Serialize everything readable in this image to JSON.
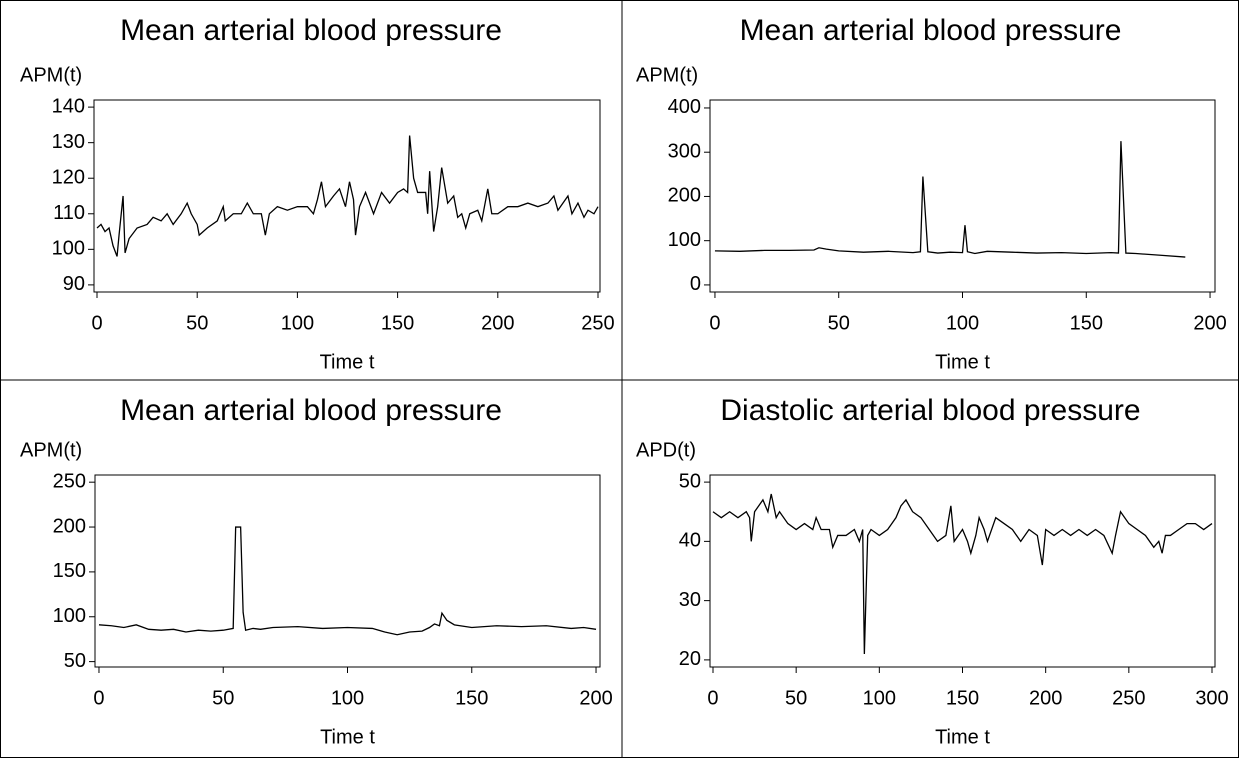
{
  "chart_data": [
    {
      "type": "line",
      "title": "Mean arterial blood pressure",
      "y_label": "APM(t)",
      "x_label": "Time t",
      "color": "#000000",
      "xlim": [
        -1.5,
        251
      ],
      "ylim": [
        88,
        142
      ],
      "xticks": [
        0,
        50,
        100,
        150,
        200,
        250
      ],
      "yticks": [
        90,
        100,
        110,
        120,
        130,
        140
      ],
      "x": [
        0,
        2,
        4,
        6,
        8,
        10,
        11,
        13,
        14,
        16,
        20,
        25,
        28,
        32,
        35,
        38,
        42,
        45,
        47,
        50,
        51,
        55,
        60,
        63,
        64,
        68,
        72,
        75,
        78,
        82,
        84,
        86,
        90,
        95,
        100,
        105,
        108,
        110,
        112,
        114,
        118,
        121,
        124,
        126,
        128,
        129,
        131,
        134,
        138,
        142,
        146,
        150,
        153,
        155,
        156,
        158,
        160,
        164,
        165,
        166,
        168,
        170,
        172,
        175,
        178,
        180,
        182,
        184,
        186,
        190,
        192,
        195,
        197,
        200,
        205,
        210,
        215,
        220,
        225,
        228,
        230,
        235,
        237,
        240,
        243,
        245,
        248,
        250
      ],
      "values": [
        106,
        107,
        105,
        106,
        101,
        98,
        104,
        115,
        99,
        103,
        106,
        107,
        109,
        108,
        110,
        107,
        110,
        113,
        110,
        107,
        104,
        106,
        108,
        112,
        108,
        110,
        110,
        113,
        110,
        110,
        104,
        110,
        112,
        111,
        112,
        112,
        110,
        114,
        119,
        112,
        115,
        117,
        112,
        119,
        114,
        104,
        112,
        116,
        110,
        116,
        113,
        116,
        117,
        116,
        132,
        120,
        116,
        116,
        110,
        122,
        105,
        112,
        123,
        113,
        115,
        109,
        110,
        106,
        110,
        111,
        108,
        117,
        110,
        110,
        112,
        112,
        113,
        112,
        113,
        115,
        111,
        115,
        110,
        113,
        109,
        111,
        110,
        112
      ]
    },
    {
      "type": "line",
      "title": "Mean arterial blood pressure",
      "y_label": "APM(t)",
      "x_label": "Time t",
      "color": "#000000",
      "xlim": [
        -2,
        202
      ],
      "ylim": [
        -16,
        418
      ],
      "xticks": [
        0,
        50,
        100,
        150,
        200
      ],
      "yticks": [
        0,
        100,
        200,
        300,
        400
      ],
      "x": [
        0,
        10,
        20,
        30,
        40,
        42,
        45,
        50,
        60,
        70,
        80,
        83,
        84,
        86,
        90,
        95,
        100,
        101,
        102,
        105,
        110,
        120,
        130,
        140,
        150,
        160,
        163,
        164,
        166,
        170,
        180,
        190
      ],
      "values": [
        77,
        76,
        78,
        78,
        79,
        84,
        81,
        77,
        74,
        76,
        73,
        75,
        245,
        75,
        72,
        74,
        73,
        135,
        75,
        71,
        76,
        74,
        72,
        73,
        71,
        73,
        72,
        325,
        72,
        71,
        67,
        63
      ]
    },
    {
      "type": "line",
      "title": "Mean arterial blood pressure",
      "y_label": "APM(t)",
      "x_label": "Time t",
      "color": "#000000",
      "xlim": [
        -1.6,
        201.6
      ],
      "ylim": [
        44,
        258
      ],
      "xticks": [
        0,
        50,
        100,
        150,
        200
      ],
      "yticks": [
        50,
        100,
        150,
        200,
        250
      ],
      "x": [
        0,
        5,
        10,
        15,
        20,
        25,
        30,
        35,
        40,
        45,
        50,
        54,
        55,
        57,
        58,
        59,
        62,
        65,
        70,
        80,
        90,
        100,
        110,
        115,
        120,
        125,
        130,
        133,
        135,
        137,
        138,
        140,
        143,
        150,
        160,
        170,
        180,
        190,
        195,
        200
      ],
      "values": [
        91,
        90,
        88,
        91,
        86,
        85,
        86,
        83,
        85,
        84,
        85,
        87,
        200,
        200,
        105,
        85,
        87,
        86,
        88,
        89,
        87,
        88,
        87,
        83,
        80,
        83,
        84,
        88,
        92,
        90,
        104,
        96,
        91,
        88,
        90,
        89,
        90,
        87,
        88,
        86
      ]
    },
    {
      "type": "line",
      "title": "Diastolic arterial blood pressure",
      "y_label": "APD(t)",
      "x_label": "Time t",
      "color": "#000000",
      "xlim": [
        -1.8,
        301.8
      ],
      "ylim": [
        18.8,
        51.2
      ],
      "xticks": [
        0,
        50,
        100,
        150,
        200,
        250,
        300
      ],
      "yticks": [
        20,
        30,
        40,
        50
      ],
      "x": [
        0,
        5,
        10,
        15,
        20,
        22,
        23,
        25,
        30,
        33,
        35,
        38,
        40,
        45,
        50,
        55,
        60,
        62,
        65,
        70,
        72,
        75,
        80,
        85,
        88,
        90,
        91,
        93,
        95,
        100,
        105,
        110,
        113,
        116,
        120,
        125,
        130,
        135,
        140,
        143,
        145,
        150,
        153,
        155,
        158,
        160,
        163,
        165,
        170,
        175,
        180,
        185,
        190,
        195,
        198,
        200,
        205,
        210,
        215,
        220,
        225,
        230,
        235,
        240,
        242,
        245,
        250,
        255,
        260,
        265,
        268,
        270,
        272,
        275,
        280,
        285,
        290,
        295,
        300
      ],
      "values": [
        45,
        44,
        45,
        44,
        45,
        44,
        40,
        45,
        47,
        45,
        48,
        44,
        45,
        43,
        42,
        43,
        42,
        44,
        42,
        42,
        39,
        41,
        41,
        42,
        40,
        42,
        21,
        41,
        42,
        41,
        42,
        44,
        46,
        47,
        45,
        44,
        42,
        40,
        41,
        46,
        40,
        42,
        40,
        38,
        41,
        44,
        42,
        40,
        44,
        43,
        42,
        40,
        42,
        41,
        36,
        42,
        41,
        42,
        41,
        42,
        41,
        42,
        41,
        38,
        41,
        45,
        43,
        42,
        41,
        39,
        40,
        38,
        41,
        41,
        42,
        43,
        43,
        42,
        43
      ]
    }
  ]
}
